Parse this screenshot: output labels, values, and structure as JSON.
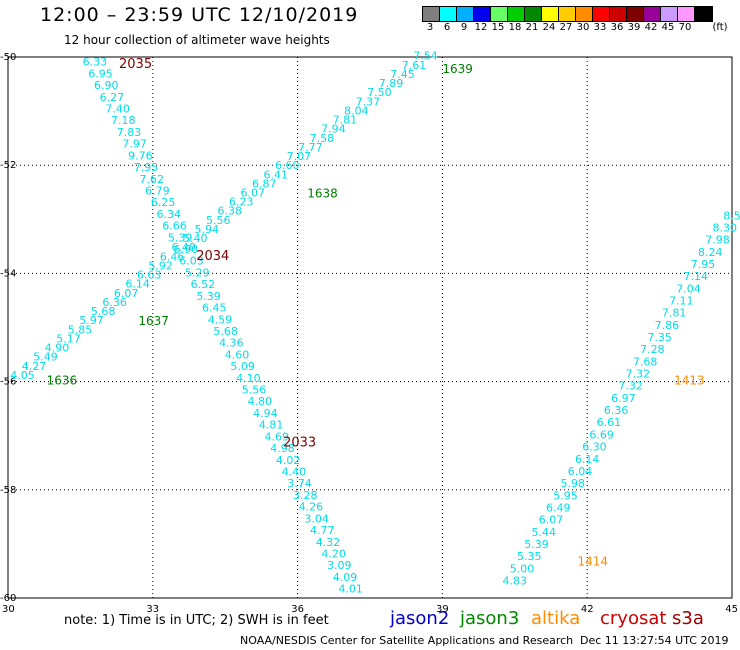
{
  "header": {
    "title": "12:00 – 23:59 UTC 12/10/2019",
    "subtitle": "12 hour collection of altimeter wave heights"
  },
  "legend": {
    "unit": "(ft)",
    "swatches": [
      {
        "label": "3",
        "color": "#7f7f7f"
      },
      {
        "label": "6",
        "color": "#00ffff"
      },
      {
        "label": "9",
        "color": "#00b0ff"
      },
      {
        "label": "12",
        "color": "#0000ee"
      },
      {
        "label": "15",
        "color": "#66ff66"
      },
      {
        "label": "18",
        "color": "#00cc00"
      },
      {
        "label": "21",
        "color": "#008800"
      },
      {
        "label": "24",
        "color": "#ffff00"
      },
      {
        "label": "27",
        "color": "#ffcc00"
      },
      {
        "label": "30",
        "color": "#ff8c00"
      },
      {
        "label": "33",
        "color": "#ff0000"
      },
      {
        "label": "36",
        "color": "#cc0000"
      },
      {
        "label": "39",
        "color": "#7f0000"
      },
      {
        "label": "42",
        "color": "#990099"
      },
      {
        "label": "45",
        "color": "#cc99ff"
      },
      {
        "label": "70",
        "color": "#ff99ff"
      },
      {
        "label": "",
        "color": "#000000"
      }
    ]
  },
  "axes": {
    "x_ticks": [
      "30",
      "33",
      "36",
      "39",
      "42",
      "45"
    ],
    "y_ticks": [
      "-50",
      "-52",
      "-54",
      "-56",
      "-58",
      "-60"
    ]
  },
  "tracks": [
    {
      "id": "A",
      "color": "#00e0ee",
      "labels": [
        {
          "x": 6.33,
          "y": 0,
          "t": "6.33"
        }
      ]
    }
  ],
  "colors": {
    "cyan": "#00dde8",
    "jason3_green": "#008000",
    "cryosat_red": "#7f0000",
    "altika_orange": "#ff8c00"
  },
  "track_values": {
    "track_a": [
      "6.33",
      "6.95",
      "6.90",
      "6.27",
      "7.40",
      "7.18",
      "7.83",
      "7.97",
      "9.76",
      "7.95",
      "7.62",
      "6.79",
      "6.25",
      "6.34",
      "6.66",
      "5.39",
      "6.90",
      "6.03",
      "5.29",
      "6.52",
      "5.39",
      "6.45",
      "4.59",
      "5.68",
      "4.36",
      "4.60",
      "5.09",
      "4.10",
      "5.56",
      "4.80",
      "4.94",
      "4.81",
      "4.69",
      "4.98",
      "4.02",
      "4.40",
      "3.74",
      "3.28",
      "4.26",
      "3.04",
      "4.77",
      "4.32",
      "4.20",
      "3.09",
      "4.09",
      "4.01"
    ],
    "track_b": [
      "4.05",
      "4.27",
      "5.49",
      "4.90",
      "5.17",
      "5.85",
      "5.97",
      "5.68",
      "6.36",
      "6.07",
      "6.14",
      "6.63",
      "5.92",
      "6.46",
      "6.40",
      "5.40",
      "5.94",
      "5.56",
      "6.38",
      "6.23",
      "6.07",
      "6.87",
      "6.41",
      "6.60",
      "7.07",
      "7.77",
      "7.58",
      "7.94",
      "7.81",
      "8.04",
      "7.37",
      "7.50",
      "7.89",
      "7.45",
      "7.61",
      "7.54"
    ],
    "track_c": [
      "4.83",
      "5.00",
      "5.35",
      "5.39",
      "5.44",
      "6.07",
      "6.49",
      "5.95",
      "5.98",
      "6.04",
      "6.14",
      "6.30",
      "6.69",
      "6.61",
      "6.36",
      "6.97",
      "7.32",
      "7.32",
      "7.68",
      "7.28",
      "7.35",
      "7.86",
      "7.81",
      "7.11",
      "7.04",
      "7.14",
      "7.95",
      "8.24",
      "7.98",
      "8.30",
      "8.5"
    ]
  },
  "pass_times": {
    "cryosat": [
      "2035",
      "2034",
      "2033"
    ],
    "jason3": [
      "1639",
      "1638",
      "1637",
      "1636"
    ],
    "altika": [
      "1413",
      "1414"
    ]
  },
  "note": "note:  1) Time is in UTC; 2) SWH is in feet",
  "missions": [
    {
      "name": "jason2",
      "color": "#0000cc"
    },
    {
      "name": "jason3",
      "color": "#008800"
    },
    {
      "name": "altika",
      "color": "#ff8c00"
    },
    {
      "name": "cryosat",
      "color": "#cc0000"
    },
    {
      "name": "s3a",
      "color": "#990000"
    }
  ],
  "credit": "NOAA/NESDIS Center for Satellite Applications and Research",
  "timestamp": "Dec 11 13:27:54 UTC 2019"
}
